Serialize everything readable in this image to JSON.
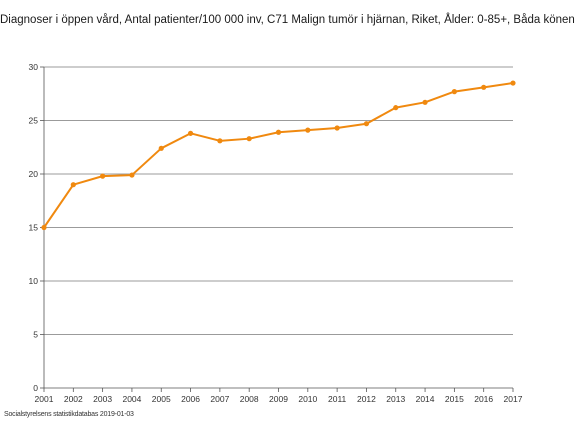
{
  "chart_data": {
    "type": "line",
    "title": "Diagnoser i öppen vård, Antal patienter/100 000 inv, C71 Malign tumör i hjärnan, Riket, Ålder: 0-85+, Båda könen",
    "xlabel": "",
    "ylabel": "",
    "x": [
      "2001",
      "2002",
      "2003",
      "2004",
      "2005",
      "2006",
      "2007",
      "2008",
      "2009",
      "2010",
      "2011",
      "2012",
      "2013",
      "2014",
      "2015",
      "2016",
      "2017"
    ],
    "series": [
      {
        "values": [
          15.0,
          19.0,
          19.8,
          19.9,
          22.4,
          23.8,
          23.1,
          23.3,
          23.9,
          24.1,
          24.3,
          24.7,
          26.2,
          26.7,
          27.7,
          28.1,
          28.5
        ]
      }
    ],
    "yticks": [
      "0",
      "5",
      "10",
      "15",
      "20",
      "25",
      "30"
    ],
    "ylim": [
      0,
      30
    ],
    "grid": true,
    "legend": "none",
    "line_color": "#f0890f",
    "grid_color": "#7a7a7a",
    "axis_color": "#555555"
  },
  "source_note": "Socialstyrelsens statistikdatabas 2019-01-03"
}
